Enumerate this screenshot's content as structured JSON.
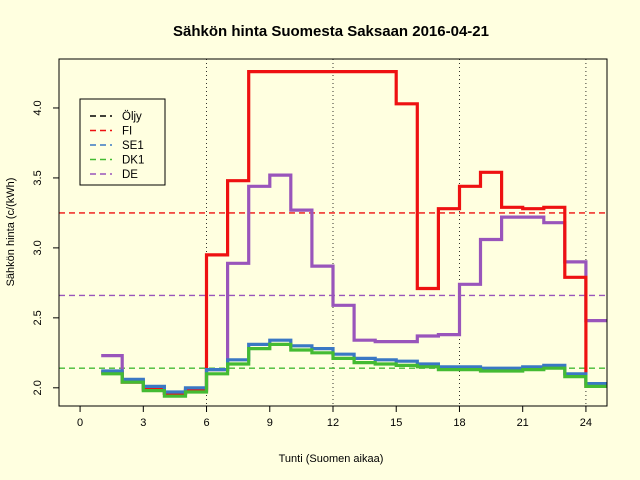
{
  "chart_data": {
    "type": "line",
    "title": "Sähkön hinta Suomesta Saksaan 2016-04-21",
    "xlabel": "Tunti (Suomen aikaa)",
    "ylabel": "Sähkön hinta (c/(kWh)",
    "xlim": [
      -1,
      25
    ],
    "ylim": [
      1.87,
      4.35
    ],
    "xticks": [
      0,
      3,
      6,
      9,
      12,
      15,
      18,
      21,
      24
    ],
    "yticks": [
      2.0,
      2.5,
      3.0,
      3.5,
      4.0
    ],
    "ytick_labels": [
      "2.0",
      "2.5",
      "3.0",
      "3.5",
      "4.0"
    ],
    "vlines": [
      6,
      12,
      18,
      24
    ],
    "legend_position": "top-left",
    "step_series": [
      {
        "name": "DE",
        "color": "#9955BB",
        "x": [
          1,
          2,
          3,
          4,
          5,
          6,
          7,
          8,
          9,
          10,
          11,
          12,
          13,
          14,
          15,
          16,
          17,
          18,
          19,
          20,
          21,
          22,
          23,
          24
        ],
        "values": [
          2.23,
          2.05,
          2.0,
          1.96,
          1.99,
          2.13,
          2.89,
          3.44,
          3.52,
          3.27,
          2.87,
          2.59,
          2.34,
          2.33,
          2.33,
          2.37,
          2.38,
          2.74,
          3.06,
          3.22,
          3.22,
          3.18,
          2.9,
          2.48
        ]
      },
      {
        "name": "FI",
        "color": "#EE1111",
        "x": [
          1,
          2,
          3,
          4,
          5,
          6,
          7,
          8,
          9,
          10,
          11,
          12,
          13,
          14,
          15,
          16,
          17,
          18,
          19,
          20,
          21,
          22,
          23,
          24
        ],
        "values": [
          2.11,
          2.04,
          1.99,
          1.96,
          1.98,
          2.95,
          3.48,
          4.26,
          4.26,
          4.26,
          4.26,
          4.26,
          4.26,
          4.26,
          4.03,
          2.71,
          3.28,
          3.44,
          3.54,
          3.29,
          3.28,
          3.29,
          2.79,
          2.01
        ]
      },
      {
        "name": "SE1",
        "color": "#3A78C4",
        "x": [
          1,
          2,
          3,
          4,
          5,
          6,
          7,
          8,
          9,
          10,
          11,
          12,
          13,
          14,
          15,
          16,
          17,
          18,
          19,
          20,
          21,
          22,
          23,
          24
        ],
        "values": [
          2.12,
          2.06,
          2.01,
          1.97,
          2.0,
          2.13,
          2.2,
          2.31,
          2.34,
          2.3,
          2.28,
          2.24,
          2.21,
          2.2,
          2.19,
          2.17,
          2.15,
          2.15,
          2.14,
          2.14,
          2.15,
          2.16,
          2.1,
          2.03
        ]
      },
      {
        "name": "DK1",
        "color": "#44BB33",
        "x": [
          1,
          2,
          3,
          4,
          5,
          6,
          7,
          8,
          9,
          10,
          11,
          12,
          13,
          14,
          15,
          16,
          17,
          18,
          19,
          20,
          21,
          22,
          23,
          24
        ],
        "values": [
          2.1,
          2.04,
          1.98,
          1.94,
          1.97,
          2.1,
          2.17,
          2.28,
          2.31,
          2.27,
          2.25,
          2.21,
          2.18,
          2.17,
          2.16,
          2.15,
          2.13,
          2.13,
          2.12,
          2.12,
          2.13,
          2.14,
          2.08,
          2.01
        ]
      }
    ],
    "hlines": [
      {
        "name": "FI",
        "value": 3.25,
        "color": "#EE1111"
      },
      {
        "name": "DE",
        "value": 2.66,
        "color": "#9955BB"
      },
      {
        "name": "DK1",
        "value": 2.14,
        "color": "#44BB33"
      }
    ],
    "legend": [
      {
        "label": "Öljy",
        "color": "#000000"
      },
      {
        "label": "FI",
        "color": "#EE1111"
      },
      {
        "label": "SE1",
        "color": "#3A78C4"
      },
      {
        "label": "DK1",
        "color": "#44BB33"
      },
      {
        "label": "DE",
        "color": "#9955BB"
      }
    ]
  }
}
